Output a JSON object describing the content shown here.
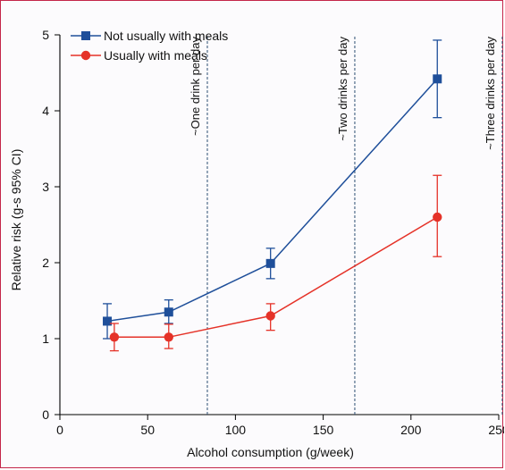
{
  "chart_data": {
    "type": "line",
    "title": "",
    "xlabel": "Alcohol consumption (g/week)",
    "ylabel": "Relative risk (g-s 95% CI)",
    "xlim": [
      0,
      250
    ],
    "ylim": [
      0,
      5
    ],
    "x_ticks": [
      0,
      50,
      100,
      150,
      200,
      250
    ],
    "x_tick_labels": [
      "0",
      "50",
      "100",
      "150",
      "200",
      "250"
    ],
    "y_ticks": [
      0,
      1,
      2,
      3,
      4,
      5
    ],
    "y_tick_labels": [
      "0",
      "1",
      "2",
      "3",
      "4",
      "5"
    ],
    "grid": false,
    "legend_position": "top-left",
    "series": [
      {
        "name": "Not usually with meals",
        "color": "#1f4f9a",
        "marker": "square",
        "points": [
          {
            "x": 27,
            "y": 1.23,
            "lower": 1.0,
            "upper": 1.46
          },
          {
            "x": 62,
            "y": 1.35,
            "lower": 1.2,
            "upper": 1.51
          },
          {
            "x": 120,
            "y": 1.99,
            "lower": 1.79,
            "upper": 2.19
          },
          {
            "x": 215,
            "y": 4.42,
            "lower": 3.91,
            "upper": 4.93
          }
        ]
      },
      {
        "name": "Usually with meals",
        "color": "#e53228",
        "marker": "circle",
        "points": [
          {
            "x": 31,
            "y": 1.02,
            "lower": 0.84,
            "upper": 1.2
          },
          {
            "x": 62,
            "y": 1.02,
            "lower": 0.87,
            "upper": 1.19
          },
          {
            "x": 120,
            "y": 1.3,
            "lower": 1.11,
            "upper": 1.46
          },
          {
            "x": 215,
            "y": 2.6,
            "lower": 2.08,
            "upper": 3.15
          }
        ]
      }
    ],
    "reference_lines": [
      {
        "x": 84,
        "label": "~One drink per day"
      },
      {
        "x": 168,
        "label": "~Two drinks per day"
      },
      {
        "x": 252,
        "label": "~Three drinks per day"
      }
    ]
  }
}
